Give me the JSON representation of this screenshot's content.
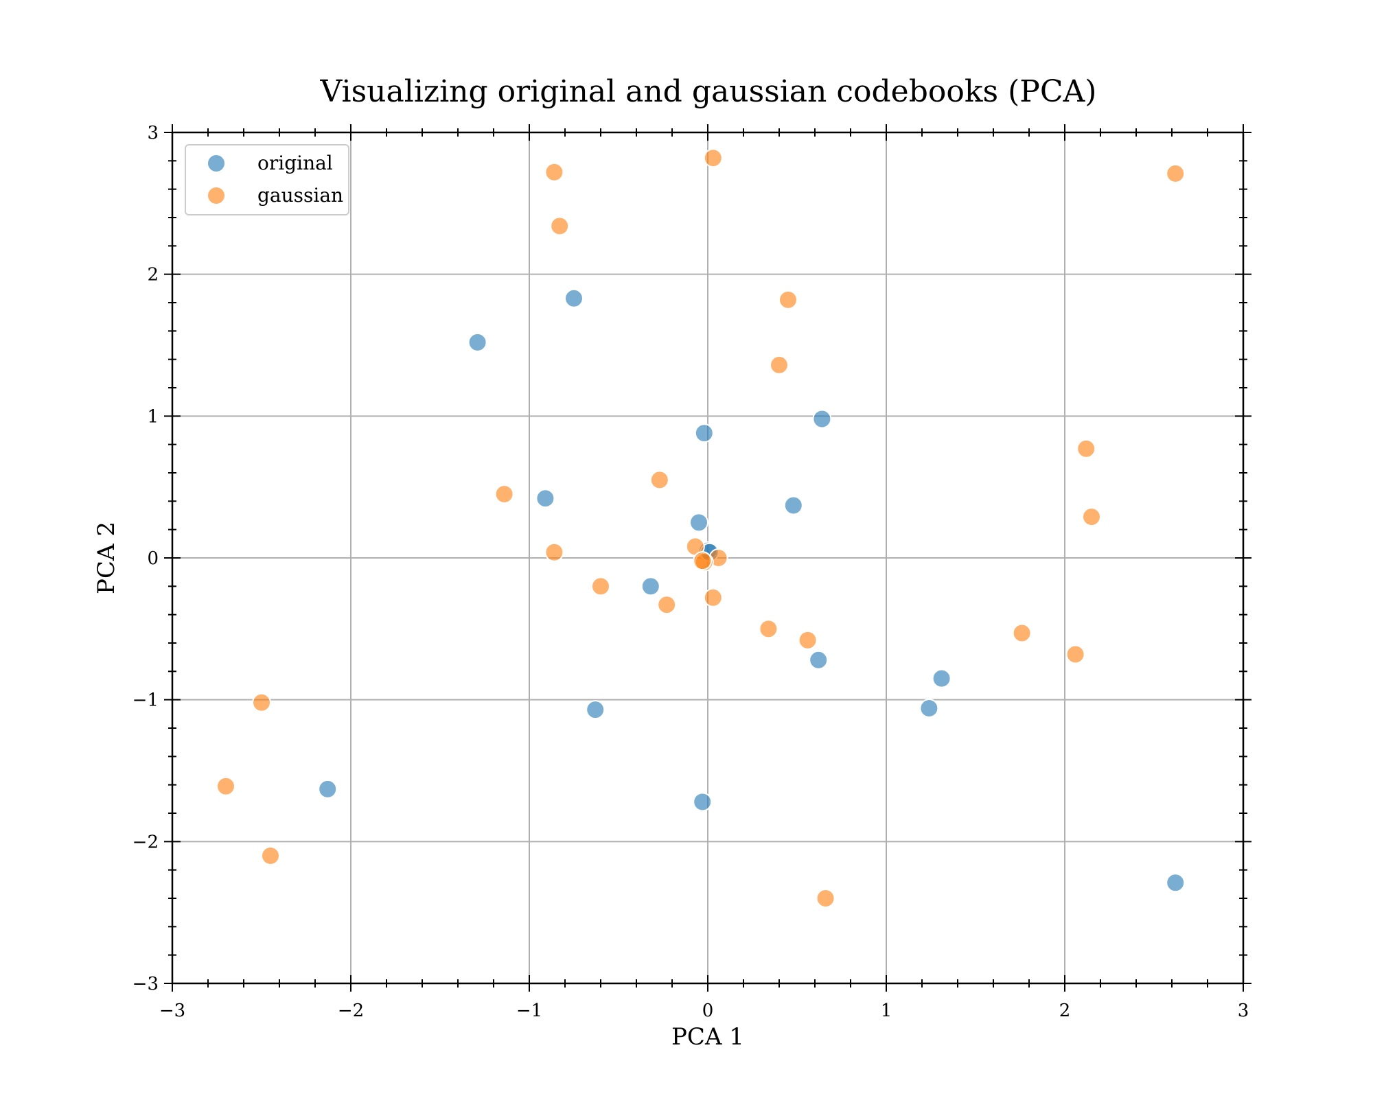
{
  "chart_data": {
    "type": "scatter",
    "title": "Visualizing original and gaussian codebooks (PCA)",
    "xlabel": "PCA 1",
    "ylabel": "PCA 2",
    "xlim": [
      -3,
      3
    ],
    "ylim": [
      -3,
      3
    ],
    "xticks": [
      -3,
      -2,
      -1,
      0,
      1,
      2,
      3
    ],
    "yticks": [
      -3,
      -2,
      -1,
      0,
      1,
      2,
      3
    ],
    "xtick_labels": [
      "−3",
      "−2",
      "−1",
      "0",
      "1",
      "2",
      "3"
    ],
    "ytick_labels": [
      "−3",
      "−2",
      "−1",
      "0",
      "1",
      "2",
      "3"
    ],
    "grid": true,
    "legend": "top-left",
    "series": [
      {
        "name": "original",
        "color": "#1f77b4",
        "points": [
          [
            -0.75,
            1.83
          ],
          [
            -1.29,
            1.52
          ],
          [
            0.64,
            0.98
          ],
          [
            -0.02,
            0.88
          ],
          [
            -0.91,
            0.42
          ],
          [
            0.48,
            0.37
          ],
          [
            -0.05,
            0.25
          ],
          [
            0.0,
            0.05
          ],
          [
            0.01,
            0.04
          ],
          [
            -0.32,
            -0.2
          ],
          [
            0.62,
            -0.72
          ],
          [
            1.31,
            -0.85
          ],
          [
            -0.63,
            -1.07
          ],
          [
            1.24,
            -1.06
          ],
          [
            -2.13,
            -1.63
          ],
          [
            -0.03,
            -1.72
          ],
          [
            2.62,
            -2.29
          ]
        ]
      },
      {
        "name": "gaussian",
        "color": "#ff7f0e",
        "points": [
          [
            -0.86,
            2.72
          ],
          [
            0.03,
            2.82
          ],
          [
            2.62,
            2.71
          ],
          [
            -0.83,
            2.34
          ],
          [
            0.45,
            1.82
          ],
          [
            0.4,
            1.36
          ],
          [
            2.12,
            0.77
          ],
          [
            -0.27,
            0.55
          ],
          [
            -1.14,
            0.45
          ],
          [
            2.15,
            0.29
          ],
          [
            -0.86,
            0.04
          ],
          [
            -0.07,
            0.08
          ],
          [
            0.06,
            0.0
          ],
          [
            -0.02,
            -0.03
          ],
          [
            -0.03,
            -0.02
          ],
          [
            -0.6,
            -0.2
          ],
          [
            -0.23,
            -0.33
          ],
          [
            0.03,
            -0.28
          ],
          [
            0.34,
            -0.5
          ],
          [
            0.56,
            -0.58
          ],
          [
            1.76,
            -0.53
          ],
          [
            2.06,
            -0.68
          ],
          [
            -2.5,
            -1.02
          ],
          [
            -2.7,
            -1.61
          ],
          [
            -2.45,
            -2.1
          ],
          [
            0.66,
            -2.4
          ]
        ]
      }
    ]
  }
}
